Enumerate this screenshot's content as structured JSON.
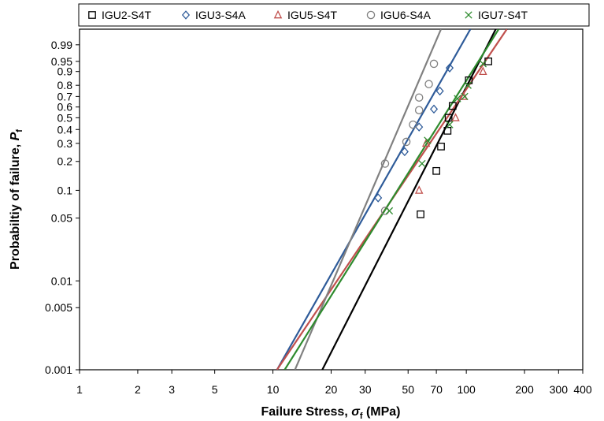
{
  "chart_data": {
    "type": "scatter",
    "x_scale": "log",
    "y_scale": "weibull-probability",
    "xlim": [
      1,
      400
    ],
    "ylim": [
      0.001,
      0.999
    ],
    "xlabel_main": "Failure Stress, ",
    "xlabel_symbol": "σ",
    "xlabel_sub": "f",
    "xlabel_unit": " (MPa)",
    "ylabel_main": "Probabiltiy of failure, ",
    "ylabel_symbol": "P",
    "ylabel_sub": "f",
    "x_ticks": [
      "1",
      "2",
      "3",
      "5",
      "10",
      "20",
      "30",
      "50",
      "70",
      "100",
      "200",
      "300",
      "400"
    ],
    "y_ticks": [
      "0.001",
      "0.005",
      "0.01",
      "0.05",
      "0.1",
      "0.2",
      "0.3",
      "0.4",
      "0.5",
      "0.6",
      "0.7",
      "0.8",
      "0.9",
      "0.95",
      "0.99"
    ],
    "grid": false,
    "legend_position": "top",
    "series": [
      {
        "name": "IGU2-S4T",
        "marker": "square",
        "color": "#000000",
        "points": [
          [
            58,
            0.055
          ],
          [
            70,
            0.16
          ],
          [
            74,
            0.28
          ],
          [
            80,
            0.39
          ],
          [
            81,
            0.5
          ],
          [
            85,
            0.61
          ],
          [
            103,
            0.84
          ],
          [
            130,
            0.95
          ]
        ],
        "fit": [
          [
            18,
            0.001
          ],
          [
            142,
            0.999
          ]
        ]
      },
      {
        "name": "IGU3-S4A",
        "marker": "diamond",
        "color": "#2e5b99",
        "points": [
          [
            35,
            0.083
          ],
          [
            48,
            0.25
          ],
          [
            57,
            0.42
          ],
          [
            68,
            0.58
          ],
          [
            73,
            0.75
          ],
          [
            82,
            0.92
          ]
        ],
        "fit": [
          [
            10.5,
            0.001
          ],
          [
            105,
            0.999
          ]
        ]
      },
      {
        "name": "IGU5-S4T",
        "marker": "triangle",
        "color": "#c0504d",
        "points": [
          [
            57,
            0.1
          ],
          [
            62,
            0.3
          ],
          [
            88,
            0.5
          ],
          [
            97,
            0.7
          ],
          [
            122,
            0.9
          ]
        ],
        "fit": [
          [
            10.5,
            0.001
          ],
          [
            162,
            0.999
          ]
        ]
      },
      {
        "name": "IGU6-S4A",
        "marker": "circle",
        "color": "#808080",
        "points": [
          [
            38,
            0.06
          ],
          [
            38,
            0.19
          ],
          [
            49,
            0.31
          ],
          [
            53,
            0.44
          ],
          [
            57,
            0.57
          ],
          [
            57,
            0.69
          ],
          [
            64,
            0.81
          ],
          [
            68,
            0.94
          ]
        ],
        "fit": [
          [
            13,
            0.001
          ],
          [
            74,
            0.999
          ]
        ]
      },
      {
        "name": "IGU7-S4T",
        "marker": "cross",
        "color": "#2e8b2e",
        "points": [
          [
            40,
            0.06
          ],
          [
            59,
            0.19
          ],
          [
            63,
            0.32
          ],
          [
            82,
            0.44
          ],
          [
            90,
            0.68
          ],
          [
            98,
            0.7
          ],
          [
            102,
            0.8
          ],
          [
            122,
            0.94
          ]
        ],
        "fit": [
          [
            11.5,
            0.001
          ],
          [
            147,
            0.999
          ]
        ]
      }
    ]
  }
}
